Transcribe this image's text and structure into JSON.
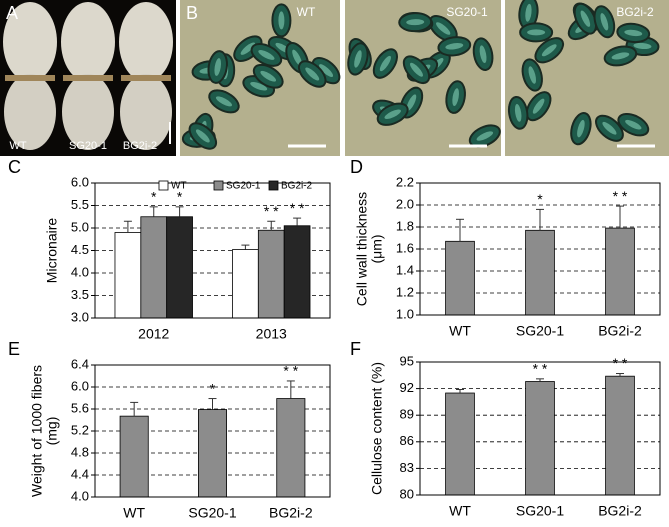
{
  "panels": [
    {
      "label": "A",
      "captions": [
        "WT",
        "SG20-1",
        "BG2i-2"
      ]
    },
    {
      "label": "B",
      "captions": [
        "WT",
        "SG20-1",
        "BG2i-2"
      ]
    }
  ],
  "chart_data": [
    {
      "panel": "C",
      "type": "bar",
      "ylabel": [
        "Micronaire"
      ],
      "categories": [
        "2012",
        "2013"
      ],
      "series": [
        {
          "name": "WT",
          "color": "#ffffff",
          "values": [
            4.9,
            4.52
          ],
          "errors": [
            0.25,
            0.1
          ],
          "significance": [
            null,
            null
          ]
        },
        {
          "name": "SG20-1",
          "color": "#8c8c8c",
          "values": [
            5.25,
            4.95
          ],
          "errors": [
            0.22,
            0.2
          ],
          "significance": [
            "*",
            "* *"
          ]
        },
        {
          "name": "BG2i-2",
          "color": "#262626",
          "values": [
            5.25,
            5.05
          ],
          "errors": [
            0.22,
            0.17
          ],
          "significance": [
            "*",
            "* *"
          ]
        }
      ],
      "ylim": [
        3,
        6
      ],
      "yticks": [
        {
          "value": 3,
          "label": "3.0"
        },
        3.5,
        {
          "value": 4,
          "label": "4.0"
        },
        4.5,
        {
          "value": 5,
          "label": "5.0"
        },
        5.5,
        {
          "value": 6,
          "label": "6.0"
        }
      ],
      "grid": true,
      "legend": "top"
    },
    {
      "panel": "D",
      "type": "bar",
      "ylabel": [
        "Cell wall thickness",
        "(μm)"
      ],
      "categories": [
        "WT",
        "SG20-1",
        "BG2i-2"
      ],
      "color": "#8c8c8c",
      "values": [
        1.67,
        1.77,
        1.79
      ],
      "errors": [
        0.2,
        0.19,
        0.2
      ],
      "significance": [
        null,
        "*",
        "* *"
      ],
      "ylim": [
        1,
        2.2
      ],
      "yticks": [
        {
          "value": 1,
          "label": "1.0"
        },
        1.2,
        1.4,
        1.6,
        1.8,
        {
          "value": 2,
          "label": "2.0"
        },
        2.2
      ],
      "grid": true
    },
    {
      "panel": "E",
      "type": "bar",
      "ylabel": [
        "Weight of 1000 fibers",
        "(mg)"
      ],
      "categories": [
        "WT",
        "SG20-1",
        "BG2i-2"
      ],
      "color": "#8c8c8c",
      "values": [
        5.47,
        5.59,
        5.79
      ],
      "errors": [
        0.25,
        0.2,
        0.32
      ],
      "significance": [
        null,
        "*",
        "* *"
      ],
      "ylim": [
        4,
        6.4
      ],
      "yticks": [
        {
          "value": 4,
          "label": "4.0"
        },
        4.4,
        4.8,
        5.2,
        5.6,
        {
          "value": 6,
          "label": "6.0"
        },
        6.4
      ],
      "grid": true
    },
    {
      "panel": "F",
      "type": "bar",
      "ylabel": [
        "Cellulose content (%)"
      ],
      "categories": [
        "WT",
        "SG20-1",
        "BG2i-2"
      ],
      "color": "#8c8c8c",
      "values": [
        91.5,
        92.8,
        93.4
      ],
      "errors": [
        0.4,
        0.3,
        0.3
      ],
      "significance": [
        null,
        "* *",
        "* *"
      ],
      "ylim": [
        80,
        95
      ],
      "yticks": [
        80,
        83,
        86,
        89,
        92,
        95
      ],
      "grid": true
    }
  ]
}
